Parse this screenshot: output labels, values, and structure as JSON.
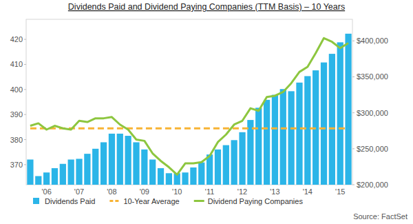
{
  "chart_data": {
    "type": "bar",
    "title": "Dividends Paid and Dividend Paying Companies (TTM Basis) – 10 Years",
    "source": "Source: FactSet",
    "categories": [
      null,
      null,
      "'06",
      null,
      null,
      null,
      "'07",
      null,
      null,
      null,
      "'08",
      null,
      null,
      null,
      "'09",
      null,
      null,
      null,
      "'10",
      null,
      null,
      null,
      "'11",
      null,
      null,
      null,
      "'12",
      null,
      null,
      null,
      "'13",
      null,
      null,
      null,
      "'14",
      null,
      null,
      null,
      "'15",
      null
    ],
    "series": [
      {
        "name": "Dividends Paid",
        "type": "bar",
        "axis": "y2",
        "color": "#2bb5e8",
        "values": [
          235000,
          212000,
          217000,
          223000,
          229000,
          235000,
          236000,
          243000,
          250000,
          259000,
          271000,
          271000,
          268000,
          259000,
          249000,
          235000,
          223000,
          216000,
          216000,
          217000,
          224000,
          231000,
          242000,
          249000,
          255000,
          262000,
          273000,
          290000,
          307000,
          318000,
          325000,
          333000,
          330000,
          342000,
          351000,
          359000,
          370000,
          382000,
          398000,
          410000
        ]
      },
      {
        "name": "10-Year Average",
        "type": "line",
        "line_style": "dashed",
        "color": "#f7b334",
        "values": [
          384.5,
          384.5,
          384.5,
          384.5,
          384.5,
          384.5,
          384.5,
          384.5,
          384.5,
          384.5,
          384.5,
          384.5,
          384.5,
          384.5,
          384.5,
          384.5,
          384.5,
          384.5,
          384.5,
          384.5,
          384.5,
          384.5,
          384.5,
          384.5,
          384.5,
          384.5,
          384.5,
          384.5,
          384.5,
          384.5,
          384.5,
          384.5,
          384.5,
          384.5,
          384.5,
          384.5,
          384.5,
          384.5,
          384.5,
          384.5
        ]
      },
      {
        "name": "Dividend Paying Companies",
        "type": "line",
        "line_style": "solid",
        "color": "#8dc63f",
        "values": [
          385.5,
          386.5,
          384,
          385.5,
          384.5,
          384,
          387.5,
          387,
          388.5,
          388.5,
          389,
          386,
          384,
          380,
          379.5,
          374.5,
          371.5,
          369,
          366,
          370.5,
          370.5,
          371,
          373.5,
          379,
          382,
          386,
          387.5,
          392.5,
          391.5,
          397,
          397.5,
          399,
          402.5,
          407,
          409,
          414.5,
          420.5,
          419,
          416.5,
          418.5
        ]
      }
    ],
    "ylim": [
      362,
      428
    ],
    "yticks": [
      370,
      380,
      390,
      400,
      410,
      420
    ],
    "y2lim": [
      200000,
      430000
    ],
    "y2ticks": [
      {
        "value": 200000,
        "label": "$200,000"
      },
      {
        "value": 250000,
        "label": "$250,000"
      },
      {
        "value": 300000,
        "label": "$300,000"
      },
      {
        "value": 350000,
        "label": "$350,000"
      },
      {
        "value": 400000,
        "label": "$400,000"
      }
    ],
    "grid": false,
    "legend": "bottom left"
  }
}
